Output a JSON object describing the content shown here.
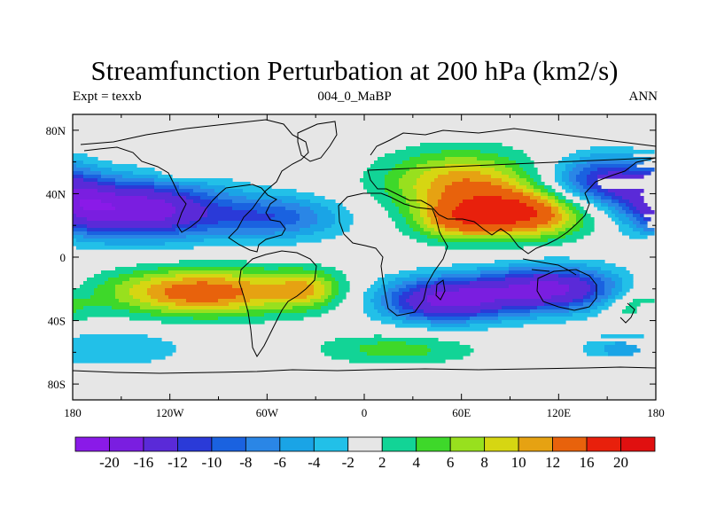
{
  "chart_data": {
    "type": "heatmap",
    "title": "Streamfunction Perturbation at 200 hPa (km2/s)",
    "subtitle_left": "Expt = texxb",
    "subtitle_center": "004_0_MaBP",
    "subtitle_right": "ANN",
    "xlim": [
      -180,
      180
    ],
    "ylim": [
      -90,
      90
    ],
    "x_ticks": [
      {
        "value": -180,
        "label": "180"
      },
      {
        "value": -120,
        "label": "120W"
      },
      {
        "value": -60,
        "label": "60W"
      },
      {
        "value": 0,
        "label": "0"
      },
      {
        "value": 60,
        "label": "60E"
      },
      {
        "value": 120,
        "label": "120E"
      },
      {
        "value": 180,
        "label": "180"
      }
    ],
    "y_ticks": [
      {
        "value": 80,
        "label": "80N"
      },
      {
        "value": 40,
        "label": "40N"
      },
      {
        "value": 0,
        "label": "0"
      },
      {
        "value": -40,
        "label": "40S"
      },
      {
        "value": -80,
        "label": "80S"
      }
    ],
    "contour_levels": [
      -20,
      -16,
      -12,
      -10,
      -8,
      -6,
      -4,
      -2,
      2,
      4,
      6,
      8,
      10,
      12,
      16,
      20
    ],
    "colorbar_labels": [
      "-20",
      "-16",
      "-12",
      "-10",
      "-8",
      "-6",
      "-4",
      "-2",
      "2",
      "4",
      "6",
      "8",
      "10",
      "12",
      "16",
      "20"
    ],
    "colors": [
      "#8a1ae8",
      "#7a1ee0",
      "#5a2ad8",
      "#2a3ad8",
      "#1a62e0",
      "#2a86e6",
      "#1aa4e6",
      "#22c0e8",
      "#e6e6e6",
      "#12d496",
      "#3ed82a",
      "#98e01e",
      "#d6d612",
      "#e6a212",
      "#e8620c",
      "#e8200c",
      "#e01010"
    ],
    "features": [
      {
        "lon": -140,
        "lat": 30,
        "lon_radius": 50,
        "lat_radius": 18,
        "peak": -19
      },
      {
        "lon": -55,
        "lat": 25,
        "lon_radius": 42,
        "lat_radius": 14,
        "peak": -9
      },
      {
        "lon": -175,
        "lat": 35,
        "lon_radius": 20,
        "lat_radius": 16,
        "peak": -7
      },
      {
        "lon": 150,
        "lat": 48,
        "lon_radius": 35,
        "lat_radius": 16,
        "peak": -13
      },
      {
        "lon": 60,
        "lat": 47,
        "lon_radius": 48,
        "lat_radius": 20,
        "peak": 11
      },
      {
        "lon": 95,
        "lat": 27,
        "lon_radius": 42,
        "lat_radius": 15,
        "peak": 16
      },
      {
        "lon": 55,
        "lat": 22,
        "lon_radius": 25,
        "lat_radius": 12,
        "peak": 7
      },
      {
        "lon": -100,
        "lat": -22,
        "lon_radius": 60,
        "lat_radius": 15,
        "peak": 14
      },
      {
        "lon": -35,
        "lat": -20,
        "lon_radius": 22,
        "lat_radius": 12,
        "peak": 7
      },
      {
        "lon": 50,
        "lat": -27,
        "lon_radius": 40,
        "lat_radius": 14,
        "peak": -17
      },
      {
        "lon": 115,
        "lat": -20,
        "lon_radius": 42,
        "lat_radius": 14,
        "peak": -17
      },
      {
        "lon": 20,
        "lat": -58,
        "lon_radius": 50,
        "lat_radius": 10,
        "peak": 5
      },
      {
        "lon": 170,
        "lat": -32,
        "lon_radius": 20,
        "lat_radius": 10,
        "peak": 5
      },
      {
        "lon": -150,
        "lat": -57,
        "lon_radius": 40,
        "lat_radius": 12,
        "peak": -4
      },
      {
        "lon": -110,
        "lat": 53,
        "lon_radius": 15,
        "lat_radius": 5,
        "peak": 4
      },
      {
        "lon": 155,
        "lat": -58,
        "lon_radius": 22,
        "lat_radius": 10,
        "peak": -4
      }
    ]
  }
}
